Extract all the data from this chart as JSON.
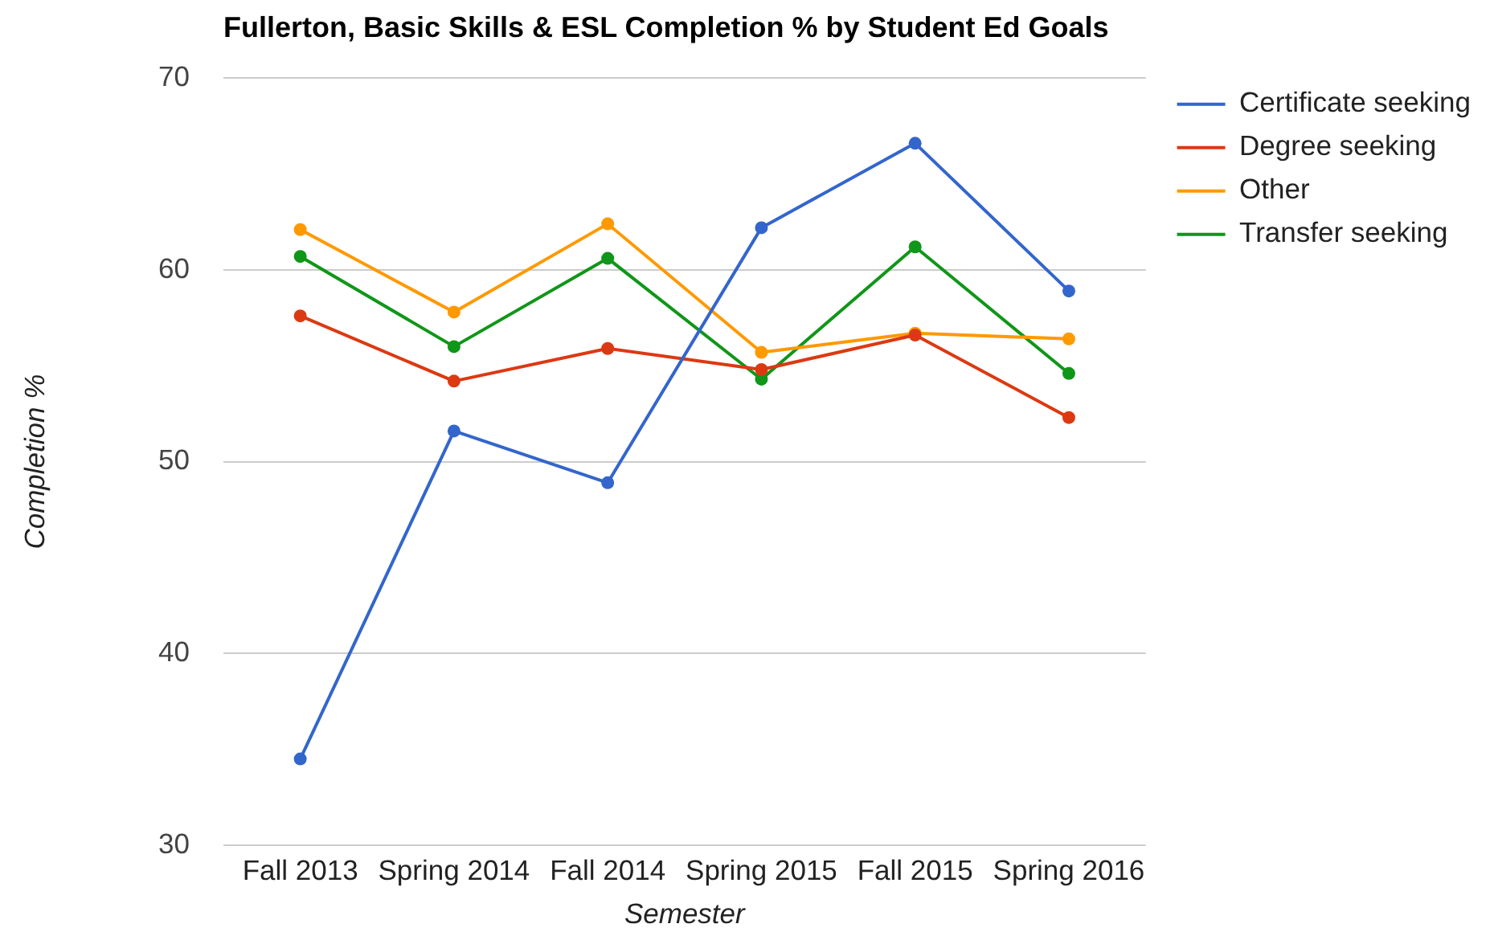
{
  "chart_data": {
    "type": "line",
    "title": "Fullerton, Basic Skills & ESL Completion % by Student Ed Goals",
    "xlabel": "Semester",
    "ylabel": "Completion %",
    "categories": [
      "Fall 2013",
      "Spring 2014",
      "Fall 2014",
      "Spring 2015",
      "Fall 2015",
      "Spring 2016"
    ],
    "series": [
      {
        "name": "Certificate seeking",
        "color": "#3366cc",
        "values": [
          34.5,
          51.6,
          48.9,
          62.2,
          66.6,
          58.9
        ]
      },
      {
        "name": "Degree seeking",
        "color": "#dc3912",
        "values": [
          57.6,
          54.2,
          55.9,
          54.8,
          56.6,
          52.3
        ]
      },
      {
        "name": "Other",
        "color": "#ff9900",
        "values": [
          62.1,
          57.8,
          62.4,
          55.7,
          56.7,
          56.4
        ]
      },
      {
        "name": "Transfer seeking",
        "color": "#109618",
        "values": [
          60.7,
          56.0,
          60.6,
          54.3,
          61.2,
          54.6
        ]
      }
    ],
    "ylim": [
      30,
      70
    ],
    "yticks": [
      30,
      40,
      50,
      60,
      70
    ],
    "grid": "y",
    "legend": "top right",
    "marker": "circle"
  }
}
